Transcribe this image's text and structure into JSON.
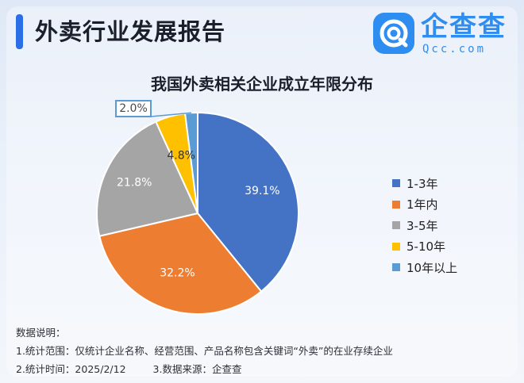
{
  "header": {
    "report_title": "外卖行业发展报告",
    "brand_name": "企查查",
    "brand_domain": "Qcc.com"
  },
  "chart_data": {
    "type": "pie",
    "title": "我国外卖相关企业成立年限分布",
    "categories": [
      "1-3年",
      "1年内",
      "3-5年",
      "5-10年",
      "10年以上"
    ],
    "values": [
      39.1,
      32.2,
      21.8,
      4.8,
      2.0
    ],
    "data_labels": [
      "39.1%",
      "32.2%",
      "21.8%",
      "4.8%",
      "2.0%"
    ],
    "colors": [
      "#4472c4",
      "#ed7d31",
      "#a5a5a5",
      "#ffc000",
      "#5b9bd5"
    ],
    "start": "12 o'clock",
    "direction": "clockwise",
    "legend_position": "right"
  },
  "notes": {
    "heading": "数据说明：",
    "scope": "1.统计范围：仅统计企业名称、经营范围、产品名称包含关键词“外卖”的在业存续企业",
    "time": "2.统计时间：2025/2/12",
    "source": "3.数据来源：企查查"
  }
}
